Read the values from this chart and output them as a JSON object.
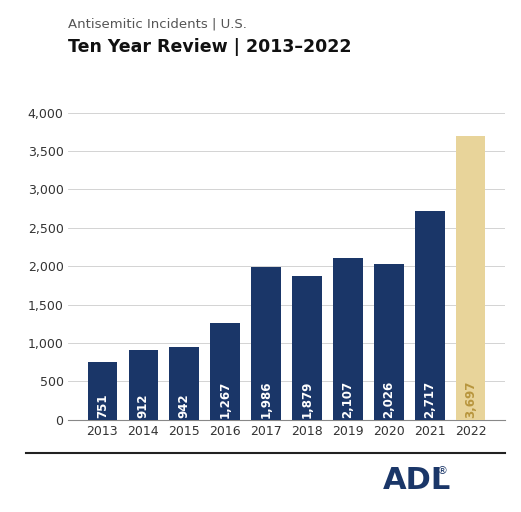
{
  "title_line1": "Antisemitic Incidents | U.S.",
  "title_line2": "Ten Year Review | 2013–2022",
  "years": [
    2013,
    2014,
    2015,
    2016,
    2017,
    2018,
    2019,
    2020,
    2021,
    2022
  ],
  "values": [
    751,
    912,
    942,
    1267,
    1986,
    1879,
    2107,
    2026,
    2717,
    3697
  ],
  "bar_colors": [
    "#1a3668",
    "#1a3668",
    "#1a3668",
    "#1a3668",
    "#1a3668",
    "#1a3668",
    "#1a3668",
    "#1a3668",
    "#1a3668",
    "#e8d49a"
  ],
  "label_colors": [
    "#ffffff",
    "#ffffff",
    "#ffffff",
    "#ffffff",
    "#ffffff",
    "#ffffff",
    "#ffffff",
    "#ffffff",
    "#ffffff",
    "#b8963e"
  ],
  "ylim": [
    0,
    4000
  ],
  "yticks": [
    0,
    500,
    1000,
    1500,
    2000,
    2500,
    3000,
    3500,
    4000
  ],
  "bg_color": "#ffffff",
  "grid_color": "#cccccc",
  "title1_fontsize": 9.5,
  "title2_fontsize": 12.5,
  "bar_label_fontsize": 8.5,
  "tick_fontsize": 9,
  "ytick_fontsize": 9
}
